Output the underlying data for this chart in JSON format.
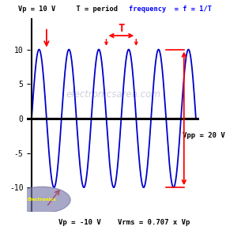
{
  "amplitude": 10,
  "freq": 0.5,
  "x_start": 0,
  "x_end": 11,
  "ylim": [
    -13.5,
    14.5
  ],
  "xlim": [
    -0.3,
    11.2
  ],
  "sine_color": "#0000cc",
  "arrow_color": "red",
  "background_color": "white",
  "watermark": "electronicsarea.com",
  "watermark_color": "#b0b0c8",
  "vpp_label": "Vpp = 20 V",
  "T_label": "T",
  "yticks": [
    -10,
    -5,
    0,
    5,
    10
  ],
  "logo_text": "Electronics",
  "logo_color": "#7878aa",
  "title_black": "Vp = 10 V     T = period   ",
  "title_blue": "frequency  = f = 1/T",
  "bottom_label1": "Vp = -10 V",
  "bottom_label2": "Vrms = 0.707 x Vp",
  "t_peak1": 5.0,
  "t_peak2": 7.0,
  "vpp_x": 10.2,
  "vpp_line_x_left": 9.0
}
